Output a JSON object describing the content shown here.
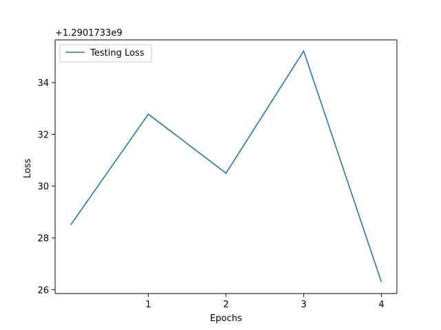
{
  "chart_data": {
    "type": "line",
    "title": "",
    "xlabel": "Epochs",
    "ylabel": "Loss",
    "offset_label": "+1.2901733e9",
    "x": [
      0,
      1,
      2,
      3,
      4
    ],
    "x_tick_values": [
      1,
      2,
      3,
      4
    ],
    "x_tick_labels": [
      "1",
      "2",
      "3",
      "4"
    ],
    "y_tick_values": [
      26,
      28,
      30,
      32,
      34
    ],
    "y_tick_labels": [
      "26",
      "28",
      "30",
      "32",
      "34"
    ],
    "xlim": [
      -0.2,
      4.2
    ],
    "ylim": [
      25.85,
      35.65
    ],
    "grid": false,
    "legend_location": "upper left",
    "series": [
      {
        "name": "Testing Loss",
        "color": "#1f77b4",
        "values": [
          28.5,
          32.78,
          30.5,
          35.22,
          26.3
        ]
      }
    ]
  }
}
